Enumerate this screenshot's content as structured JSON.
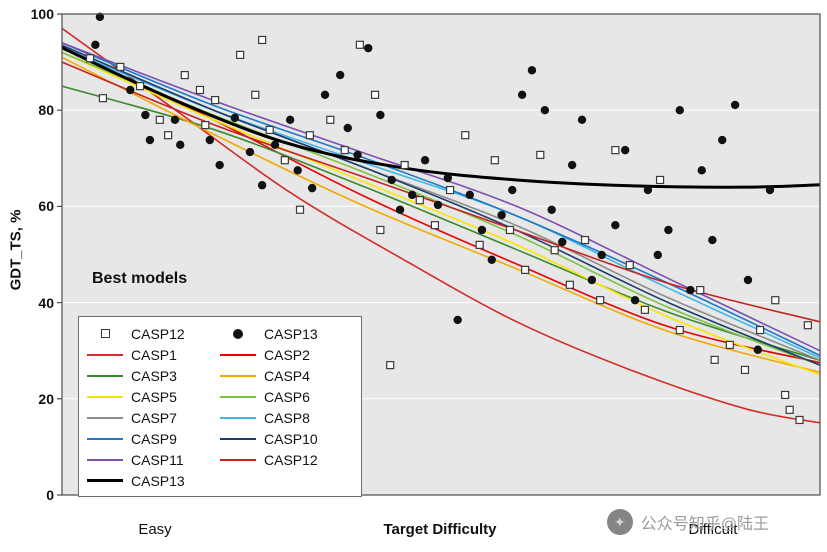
{
  "chart_data": {
    "type": "scatter",
    "title": "",
    "ylabel": "GDT_TS, %",
    "xlabel": "Target Difficulty",
    "x_axis_labels": [
      "Easy",
      "Difficult"
    ],
    "annotation": "Best models",
    "ylim": [
      0,
      100
    ],
    "yticks": [
      0,
      20,
      40,
      60,
      80,
      100
    ],
    "grid": true,
    "plot_bg": "#e7e7e7",
    "grid_color": "#ffffff",
    "border_color": "#4d4d4d",
    "legend_position": "lower-left",
    "scatter_series": [
      {
        "name": "CASP12",
        "marker": "open-square",
        "color": "#3a3a3a",
        "points": [
          [
            0.037,
            90.8
          ],
          [
            0.054,
            82.5
          ],
          [
            0.077,
            89.0
          ],
          [
            0.103,
            85.0
          ],
          [
            0.129,
            78.0
          ],
          [
            0.14,
            74.8
          ],
          [
            0.162,
            87.3
          ],
          [
            0.182,
            84.2
          ],
          [
            0.189,
            76.9
          ],
          [
            0.202,
            82.1
          ],
          [
            0.235,
            91.5
          ],
          [
            0.255,
            83.2
          ],
          [
            0.264,
            94.6
          ],
          [
            0.274,
            75.9
          ],
          [
            0.294,
            69.6
          ],
          [
            0.314,
            59.3
          ],
          [
            0.327,
            74.8
          ],
          [
            0.354,
            78.0
          ],
          [
            0.373,
            71.7
          ],
          [
            0.393,
            93.6
          ],
          [
            0.413,
            83.2
          ],
          [
            0.42,
            55.1
          ],
          [
            0.433,
            27.0
          ],
          [
            0.452,
            68.6
          ],
          [
            0.472,
            61.3
          ],
          [
            0.492,
            56.1
          ],
          [
            0.512,
            63.4
          ],
          [
            0.532,
            74.8
          ],
          [
            0.551,
            52.0
          ],
          [
            0.571,
            69.6
          ],
          [
            0.591,
            55.1
          ],
          [
            0.611,
            46.8
          ],
          [
            0.631,
            70.7
          ],
          [
            0.65,
            50.9
          ],
          [
            0.67,
            43.7
          ],
          [
            0.69,
            53.0
          ],
          [
            0.71,
            40.5
          ],
          [
            0.73,
            71.7
          ],
          [
            0.749,
            47.8
          ],
          [
            0.769,
            38.5
          ],
          [
            0.789,
            65.5
          ],
          [
            0.815,
            34.3
          ],
          [
            0.842,
            42.6
          ],
          [
            0.861,
            28.1
          ],
          [
            0.881,
            31.2
          ],
          [
            0.901,
            26.0
          ],
          [
            0.921,
            34.3
          ],
          [
            0.941,
            40.5
          ],
          [
            0.954,
            20.8
          ],
          [
            0.96,
            17.7
          ],
          [
            0.973,
            15.6
          ],
          [
            0.984,
            35.3
          ]
        ]
      },
      {
        "name": "CASP13",
        "marker": "filled-circle",
        "color": "#111111",
        "points": [
          [
            0.044,
            93.6
          ],
          [
            0.05,
            99.4
          ],
          [
            0.09,
            84.2
          ],
          [
            0.11,
            79.0
          ],
          [
            0.116,
            73.8
          ],
          [
            0.149,
            78.0
          ],
          [
            0.156,
            72.8
          ],
          [
            0.195,
            73.8
          ],
          [
            0.208,
            68.6
          ],
          [
            0.228,
            78.4
          ],
          [
            0.248,
            71.3
          ],
          [
            0.264,
            64.4
          ],
          [
            0.281,
            72.8
          ],
          [
            0.301,
            78.0
          ],
          [
            0.311,
            67.5
          ],
          [
            0.33,
            63.8
          ],
          [
            0.347,
            83.2
          ],
          [
            0.367,
            87.3
          ],
          [
            0.377,
            76.3
          ],
          [
            0.39,
            70.7
          ],
          [
            0.404,
            92.9
          ],
          [
            0.42,
            79.0
          ],
          [
            0.435,
            65.5
          ],
          [
            0.446,
            59.3
          ],
          [
            0.462,
            62.4
          ],
          [
            0.479,
            69.6
          ],
          [
            0.496,
            60.3
          ],
          [
            0.509,
            65.9
          ],
          [
            0.522,
            36.4
          ],
          [
            0.538,
            62.4
          ],
          [
            0.554,
            55.1
          ],
          [
            0.567,
            48.9
          ],
          [
            0.58,
            58.2
          ],
          [
            0.594,
            63.4
          ],
          [
            0.607,
            83.2
          ],
          [
            0.62,
            88.3
          ],
          [
            0.637,
            80.0
          ],
          [
            0.646,
            59.3
          ],
          [
            0.66,
            52.6
          ],
          [
            0.673,
            68.6
          ],
          [
            0.686,
            78.0
          ],
          [
            0.699,
            44.7
          ],
          [
            0.712,
            49.9
          ],
          [
            0.73,
            56.1
          ],
          [
            0.743,
            71.7
          ],
          [
            0.756,
            40.5
          ],
          [
            0.773,
            63.4
          ],
          [
            0.786,
            49.9
          ],
          [
            0.8,
            55.1
          ],
          [
            0.815,
            80.0
          ],
          [
            0.829,
            42.6
          ],
          [
            0.844,
            67.5
          ],
          [
            0.858,
            53.0
          ],
          [
            0.871,
            73.8
          ],
          [
            0.888,
            81.1
          ],
          [
            0.905,
            44.7
          ],
          [
            0.918,
            30.2
          ],
          [
            0.934,
            63.4
          ]
        ]
      }
    ],
    "line_series": [
      {
        "name": "CASP1",
        "color": "#d42a2a",
        "width": 1.6,
        "points": [
          [
            0,
            97
          ],
          [
            0.15,
            80
          ],
          [
            0.3,
            63
          ],
          [
            0.45,
            49
          ],
          [
            0.6,
            36
          ],
          [
            0.75,
            26
          ],
          [
            0.9,
            18
          ],
          [
            1,
            15
          ]
        ]
      },
      {
        "name": "CASP2",
        "color": "#e60000",
        "width": 1.6,
        "points": [
          [
            0,
            93
          ],
          [
            0.2,
            78
          ],
          [
            0.4,
            62
          ],
          [
            0.6,
            48
          ],
          [
            0.8,
            35
          ],
          [
            1,
            27.5
          ]
        ]
      },
      {
        "name": "CASP3",
        "color": "#3a8a2e",
        "width": 1.6,
        "points": [
          [
            0,
            85
          ],
          [
            0.2,
            76
          ],
          [
            0.4,
            64
          ],
          [
            0.6,
            51
          ],
          [
            0.8,
            38
          ],
          [
            1,
            28
          ]
        ]
      },
      {
        "name": "CASP4",
        "color": "#f2a900",
        "width": 1.6,
        "points": [
          [
            0,
            91
          ],
          [
            0.2,
            75
          ],
          [
            0.4,
            60
          ],
          [
            0.6,
            47
          ],
          [
            0.8,
            34
          ],
          [
            1,
            25.5
          ]
        ]
      },
      {
        "name": "CASP5",
        "color": "#f7e600",
        "width": 1.6,
        "points": [
          [
            0,
            92
          ],
          [
            0.2,
            78
          ],
          [
            0.4,
            65
          ],
          [
            0.6,
            52
          ],
          [
            0.8,
            37
          ],
          [
            1,
            25
          ]
        ]
      },
      {
        "name": "CASP6",
        "color": "#7ec242",
        "width": 1.6,
        "points": [
          [
            0,
            92
          ],
          [
            0.2,
            79
          ],
          [
            0.4,
            67
          ],
          [
            0.6,
            54
          ],
          [
            0.8,
            39
          ],
          [
            1,
            27
          ]
        ]
      },
      {
        "name": "CASP7",
        "color": "#8c8c8c",
        "width": 1.6,
        "points": [
          [
            0,
            93
          ],
          [
            0.2,
            80
          ],
          [
            0.4,
            68
          ],
          [
            0.6,
            56
          ],
          [
            0.8,
            41
          ],
          [
            1,
            28
          ]
        ]
      },
      {
        "name": "CASP8",
        "color": "#3fb8e8",
        "width": 1.6,
        "points": [
          [
            0,
            93
          ],
          [
            0.2,
            80
          ],
          [
            0.4,
            69
          ],
          [
            0.6,
            58
          ],
          [
            0.8,
            43
          ],
          [
            1,
            28.5
          ]
        ]
      },
      {
        "name": "CASP9",
        "color": "#1e78c8",
        "width": 1.6,
        "points": [
          [
            0,
            94
          ],
          [
            0.2,
            81
          ],
          [
            0.4,
            70
          ],
          [
            0.6,
            58
          ],
          [
            0.8,
            44
          ],
          [
            1,
            29
          ]
        ]
      },
      {
        "name": "CASP10",
        "color": "#1c3d6e",
        "width": 1.6,
        "points": [
          [
            0,
            93.5
          ],
          [
            0.2,
            80
          ],
          [
            0.4,
            68
          ],
          [
            0.6,
            55
          ],
          [
            0.8,
            40
          ],
          [
            1,
            27
          ]
        ]
      },
      {
        "name": "CASP11",
        "color": "#7d4fb3",
        "width": 1.6,
        "points": [
          [
            0,
            94
          ],
          [
            0.2,
            82
          ],
          [
            0.4,
            71
          ],
          [
            0.6,
            60
          ],
          [
            0.8,
            45
          ],
          [
            1,
            30
          ]
        ]
      },
      {
        "name": "CASP12",
        "color": "#c62222",
        "width": 1.6,
        "points": [
          [
            0,
            90
          ],
          [
            0.2,
            77
          ],
          [
            0.4,
            66
          ],
          [
            0.6,
            55
          ],
          [
            0.8,
            44
          ],
          [
            1,
            36
          ]
        ]
      },
      {
        "name": "CASP13",
        "color": "#000000",
        "width": 3,
        "points": [
          [
            0,
            93
          ],
          [
            0.15,
            82
          ],
          [
            0.3,
            73
          ],
          [
            0.45,
            68
          ],
          [
            0.6,
            65.5
          ],
          [
            0.75,
            64.3
          ],
          [
            0.9,
            64
          ],
          [
            1,
            64.5
          ]
        ]
      }
    ]
  },
  "watermark": {
    "text": "公众号知乎@陆王",
    "icon": "logo-circle-icon"
  }
}
